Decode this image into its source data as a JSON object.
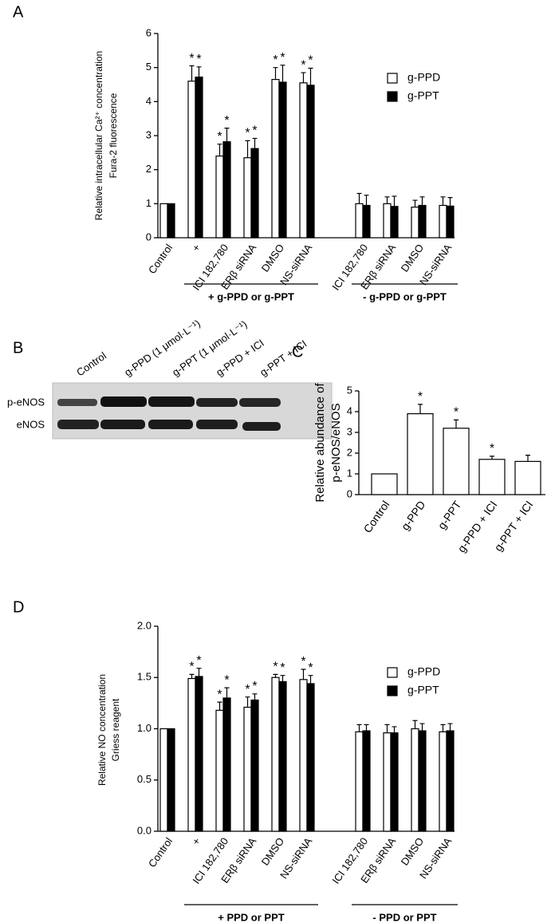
{
  "chart_data": [
    {
      "type": "bar",
      "panel_label": "A",
      "y_label": [
        "Relative intracellular Ca²⁺ concentration",
        "Fura-2 fluorescence"
      ],
      "categories": [
        "Control",
        "+",
        "ICI 182,780",
        "ERβ siRNA",
        "DMSO",
        "NS-siRNA",
        null,
        "ICI 182,780",
        "ERβ siRNA",
        "DMSO",
        "NS-siRNA"
      ],
      "series": [
        {
          "name": "g-PPD",
          "color": "#ffffff",
          "values": [
            1,
            4.6,
            2.4,
            2.35,
            4.65,
            4.55,
            null,
            1.0,
            1.0,
            0.9,
            0.95
          ],
          "errors": [
            0,
            0.45,
            0.35,
            0.5,
            0.35,
            0.3,
            null,
            0.3,
            0.2,
            0.2,
            0.25
          ],
          "significance": [
            null,
            "*",
            "*",
            "*",
            "*",
            "*",
            null,
            null,
            null,
            null,
            null
          ]
        },
        {
          "name": "g-PPT",
          "color": "#000000",
          "values": [
            1,
            4.72,
            2.82,
            2.62,
            4.57,
            4.48,
            null,
            0.95,
            0.92,
            0.95,
            0.93
          ],
          "errors": [
            0,
            0.3,
            0.4,
            0.3,
            0.5,
            0.5,
            null,
            0.3,
            0.3,
            0.25,
            0.25
          ],
          "significance": [
            null,
            "*",
            "*",
            "*",
            "*",
            "*",
            null,
            null,
            null,
            null,
            null
          ]
        }
      ],
      "groups": [
        {
          "label": "+ g-PPD or g-PPT",
          "first": 1,
          "last": 5
        },
        {
          "label": "- g-PPD or g-PPT",
          "first": 7,
          "last": 10
        }
      ],
      "ylim": [
        0,
        6
      ],
      "yticks": [
        0,
        1,
        2,
        3,
        4,
        5,
        6
      ],
      "legend": "upper right"
    },
    {
      "type": "bar",
      "panel_label": "C",
      "y_label": [
        "Relative abundance of",
        "p-eNOS/eNOS"
      ],
      "categories": [
        "Control",
        "g-PPD",
        "g-PPT",
        "g-PPD + ICI",
        "g-PPT + ICI"
      ],
      "series": [
        {
          "color": "#ffffff",
          "values": [
            1,
            3.9,
            3.2,
            1.7,
            1.6
          ],
          "errors": [
            0,
            0.45,
            0.4,
            0.15,
            0.3
          ],
          "significance": [
            null,
            "*",
            "*",
            "*",
            null
          ]
        }
      ],
      "ylim": [
        0,
        5
      ],
      "yticks": [
        0,
        1,
        2,
        3,
        4,
        5
      ]
    },
    {
      "type": "bar",
      "panel_label": "D",
      "y_label": [
        "Relative NO concentration",
        "Griess reagent"
      ],
      "categories": [
        "Control",
        "+",
        "ICI 182,780",
        "ERβ siRNA",
        "DMSO",
        "NS-siRNA",
        null,
        "ICI 182,780",
        "ERβ siRNA",
        "DMSO",
        "NS-siRNA"
      ],
      "series": [
        {
          "name": "g-PPD",
          "color": "#ffffff",
          "values": [
            1,
            1.49,
            1.18,
            1.21,
            1.5,
            1.48,
            null,
            0.97,
            0.96,
            1.0,
            0.97
          ],
          "errors": [
            0,
            0.04,
            0.08,
            0.1,
            0.03,
            0.1,
            null,
            0.07,
            0.08,
            0.08,
            0.07
          ],
          "significance": [
            null,
            "*",
            "*",
            "*",
            "*",
            "*",
            null,
            null,
            null,
            null,
            null
          ]
        },
        {
          "name": "g-PPT",
          "color": "#000000",
          "values": [
            1,
            1.51,
            1.3,
            1.28,
            1.46,
            1.44,
            null,
            0.98,
            0.96,
            0.98,
            0.98
          ],
          "errors": [
            0,
            0.08,
            0.1,
            0.06,
            0.06,
            0.08,
            null,
            0.06,
            0.06,
            0.07,
            0.07
          ],
          "significance": [
            null,
            "*",
            "*",
            "*",
            "*",
            "*",
            null,
            null,
            null,
            null,
            null
          ]
        }
      ],
      "groups": [
        {
          "label": "+ PPD or PPT",
          "first": 1,
          "last": 5
        },
        {
          "label": "- PPD or PPT",
          "first": 7,
          "last": 10
        }
      ],
      "ylim": [
        0,
        2.0
      ],
      "yticks": [
        {
          "value": 0,
          "label": "0.0"
        },
        {
          "value": 0.5,
          "label": "0.5"
        },
        {
          "value": 1.0,
          "label": "1.0"
        },
        {
          "value": 1.5,
          "label": "1.5"
        },
        {
          "value": 2.0,
          "label": "2.0"
        }
      ],
      "legend": "upper right"
    }
  ],
  "blot": {
    "panel_label": "B",
    "lanes": [
      "Control",
      "g-PPD (1 μmol·L⁻¹)",
      "g-PPT (1 μmol·L⁻¹)",
      "g-PPD + ICI",
      "g-PPT + ICI"
    ],
    "rows": [
      "p-eNOS",
      "eNOS"
    ]
  }
}
